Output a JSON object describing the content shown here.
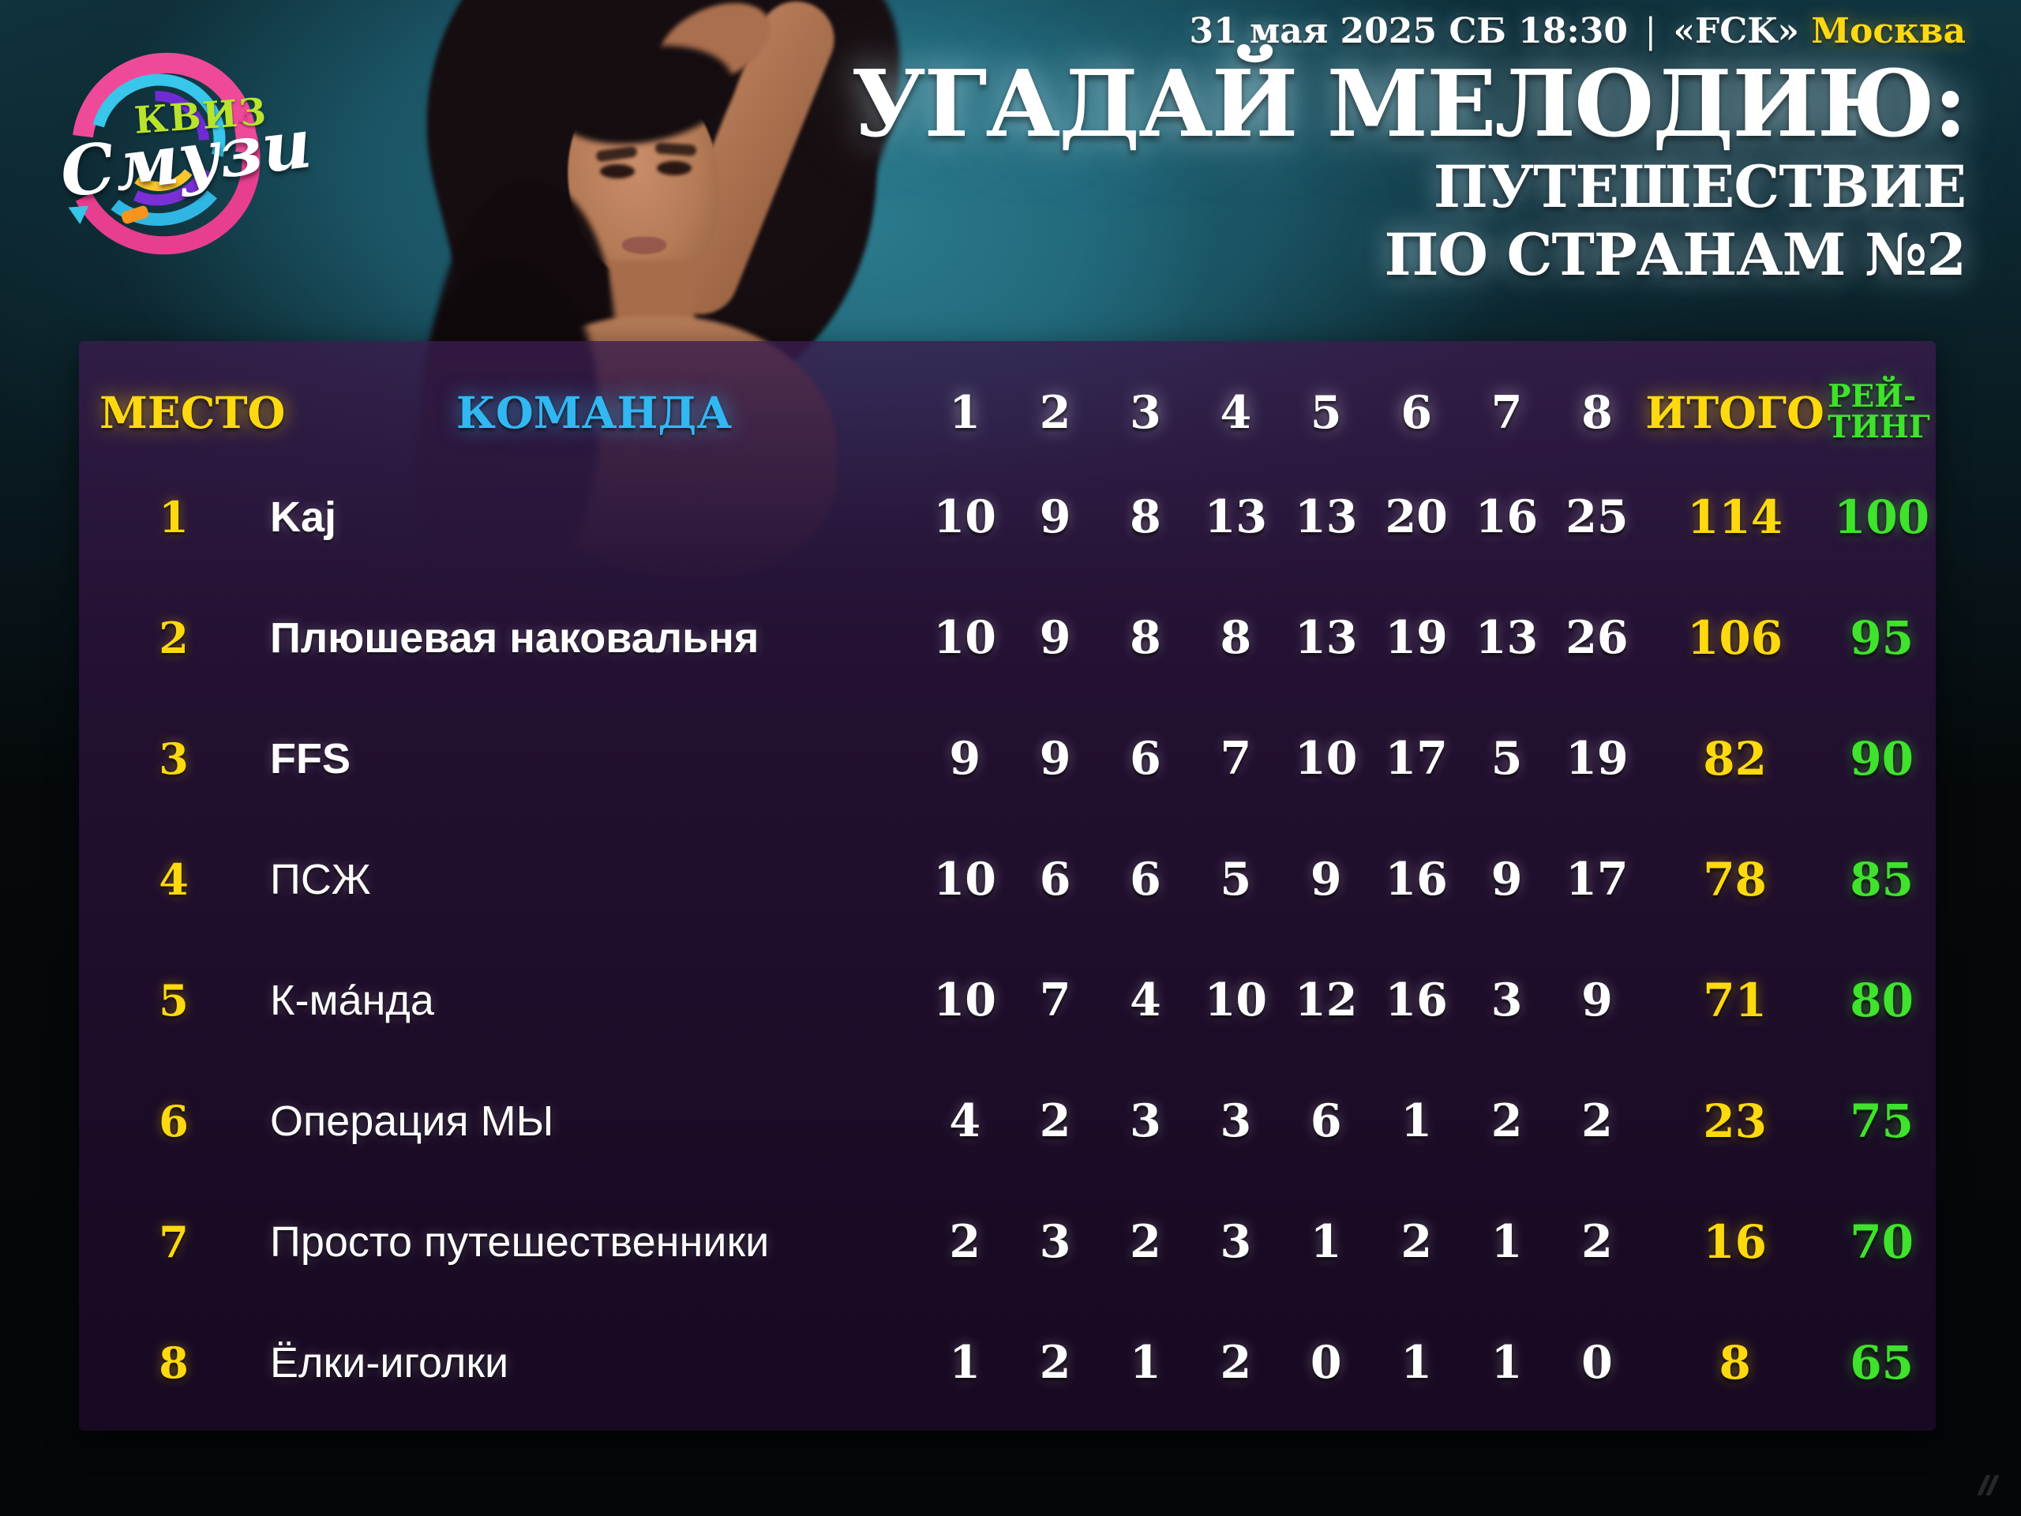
{
  "meta": {
    "datetime": "31 мая 2025 СБ 18:30",
    "separator": "|",
    "venue": "«FCK»",
    "city": "Москва"
  },
  "title": {
    "line1": "УГАДАЙ МЕЛОДИЮ:",
    "line2": "ПУТЕШЕСТВИЕ",
    "line3": "ПО СТРАНАМ №2"
  },
  "logo": {
    "word_top": "КВИЗ",
    "word_bottom": "Смузи",
    "note_glyph": "♪"
  },
  "icons": {
    "watermark": "parallel-slashes"
  },
  "colors": {
    "accent_yellow": "#ffd90f",
    "accent_cyan": "#31b8f2",
    "accent_green": "#3fe22c",
    "panel_purple": "#2a1238",
    "backdrop_teal": "#1d5b6c",
    "logo_pink": "#ef4a99",
    "logo_lime": "#b9e42c"
  },
  "table": {
    "headers": {
      "place": "МЕСТО",
      "team": "КОМАНДА",
      "rounds": [
        "1",
        "2",
        "3",
        "4",
        "5",
        "6",
        "7",
        "8"
      ],
      "total": "ИТОГО",
      "rating_line1": "РЕЙ-",
      "rating_line2": "ТИНГ"
    },
    "rows": [
      {
        "place": "1",
        "team": "Kaj",
        "bold": true,
        "scores": [
          10,
          9,
          8,
          13,
          13,
          20,
          16,
          25
        ],
        "total": 114,
        "rating": 100
      },
      {
        "place": "2",
        "team": "Плюшевая наковальня",
        "bold": true,
        "scores": [
          10,
          9,
          8,
          8,
          13,
          19,
          13,
          26
        ],
        "total": 106,
        "rating": 95
      },
      {
        "place": "3",
        "team": "FFS",
        "bold": true,
        "scores": [
          9,
          9,
          6,
          7,
          10,
          17,
          5,
          19
        ],
        "total": 82,
        "rating": 90
      },
      {
        "place": "4",
        "team": "ПСЖ",
        "bold": false,
        "scores": [
          10,
          6,
          6,
          5,
          9,
          16,
          9,
          17
        ],
        "total": 78,
        "rating": 85
      },
      {
        "place": "5",
        "team": "К-ма́нда",
        "bold": false,
        "scores": [
          10,
          7,
          4,
          10,
          12,
          16,
          3,
          9
        ],
        "total": 71,
        "rating": 80
      },
      {
        "place": "6",
        "team": "Операция МЫ",
        "bold": false,
        "scores": [
          4,
          2,
          3,
          3,
          6,
          1,
          2,
          2
        ],
        "total": 23,
        "rating": 75
      },
      {
        "place": "7",
        "team": "Просто путешественники",
        "bold": false,
        "scores": [
          2,
          3,
          2,
          3,
          1,
          2,
          1,
          2
        ],
        "total": 16,
        "rating": 70
      },
      {
        "place": "8",
        "team": "Ёлки-иголки",
        "bold": false,
        "scores": [
          1,
          2,
          1,
          2,
          0,
          1,
          1,
          0
        ],
        "total": 8,
        "rating": 65
      }
    ]
  }
}
